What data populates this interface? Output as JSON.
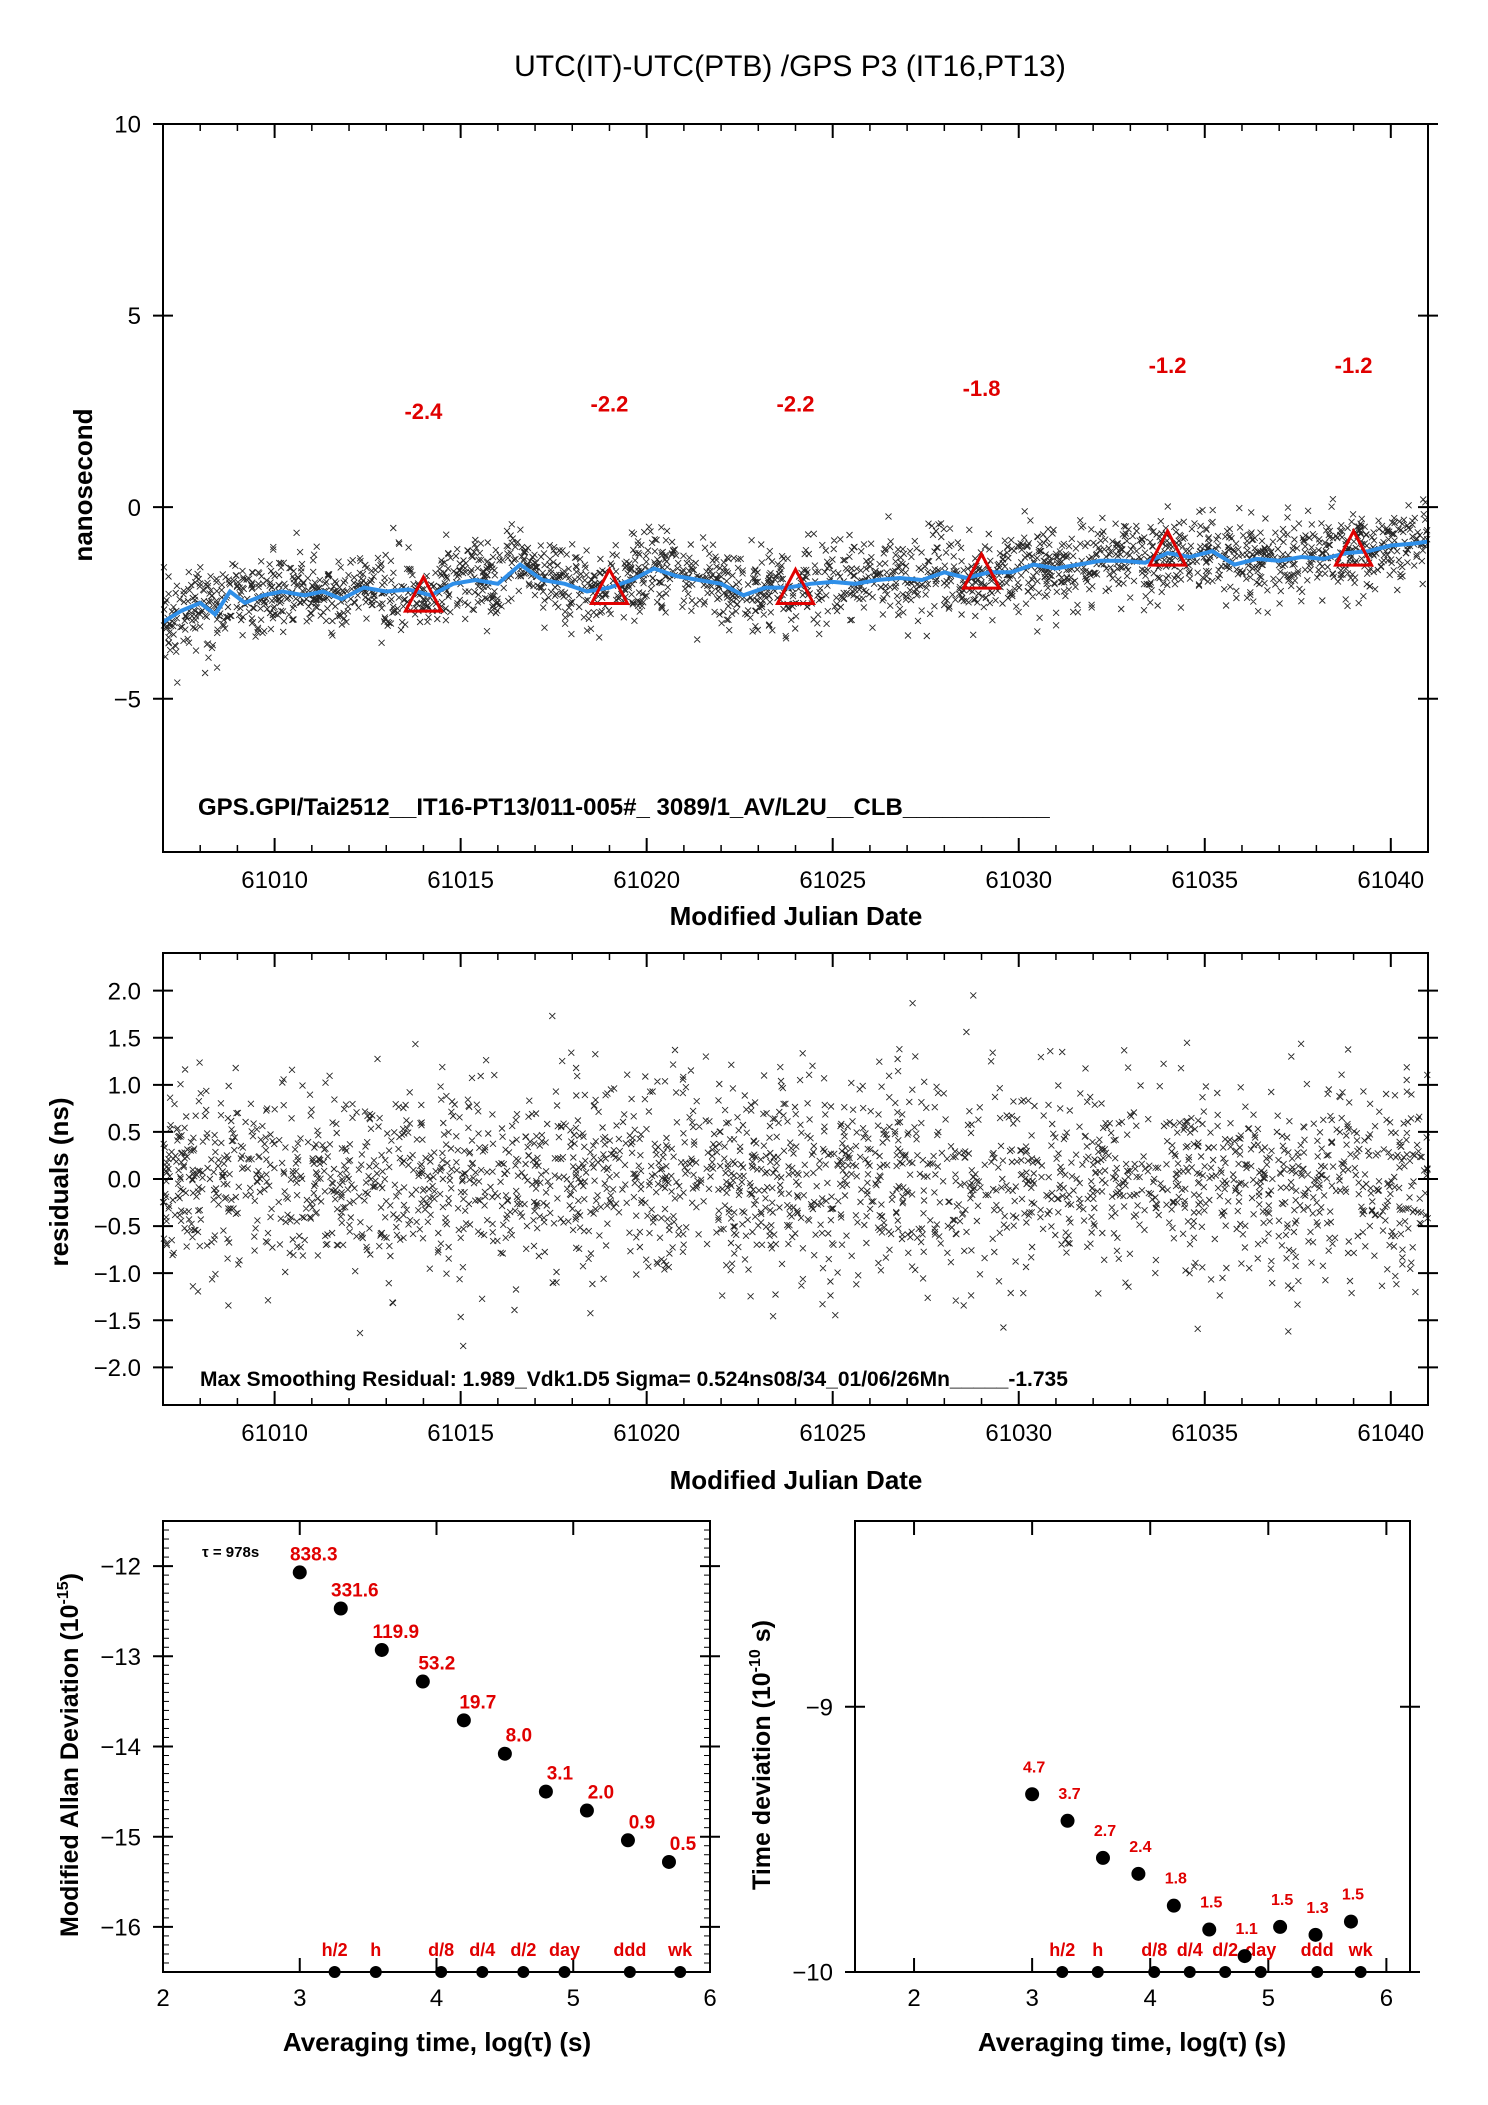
{
  "figure": {
    "title": "UTC(IT)-UTC(PTB)  /GPS  P3  (IT16,PT13)"
  },
  "chart_data": [
    {
      "type": "scatter",
      "panel": "time-difference",
      "xlabel": "Modified Julian Date",
      "ylabel": "nanosecond",
      "xlim": [
        61007,
        61041
      ],
      "ylim": [
        -9,
        10
      ],
      "xticks": [
        61010,
        61015,
        61020,
        61025,
        61030,
        61035,
        61040
      ],
      "xtick_labels": [
        "61010",
        "61015",
        "61020",
        "61025",
        "61030",
        "61035",
        "61040"
      ],
      "yticks": [
        -5,
        0,
        5,
        10
      ],
      "ytick_labels": [
        "−5",
        "0",
        "5",
        "10"
      ],
      "annotation": "GPS.GPI/Tai2512__IT16-PT13/011-005#_  3089/1_AV/L2U__CLB___________",
      "grid": false,
      "series": [
        {
          "kind": "smoothed-line",
          "color": "#2f8fe8",
          "x": [
            61007,
            61007.5,
            61008,
            61008.4,
            61008.8,
            61009.2,
            61009.7,
            61010.2,
            61010.8,
            61011.3,
            61011.8,
            61012.4,
            61013,
            61013.6,
            61014.2,
            61014.8,
            61015.4,
            61016,
            61016.6,
            61017.2,
            61017.8,
            61018.4,
            61019,
            61019.6,
            61020.2,
            61020.8,
            61021.4,
            61022,
            61022.6,
            61023.2,
            61023.8,
            61024.4,
            61025,
            61025.6,
            61026.2,
            61026.8,
            61027.4,
            61028,
            61028.6,
            61029.2,
            61029.8,
            61030.4,
            61031,
            61031.6,
            61032.2,
            61032.8,
            61033.4,
            61034,
            61034.6,
            61035.2,
            61035.8,
            61036.4,
            61037,
            61037.6,
            61038.2,
            61038.8,
            61039.4,
            61040,
            61040.6,
            61041
          ],
          "y": [
            -3.0,
            -2.7,
            -2.5,
            -2.8,
            -2.2,
            -2.5,
            -2.3,
            -2.2,
            -2.3,
            -2.2,
            -2.4,
            -2.1,
            -2.2,
            -2.15,
            -2.3,
            -2.0,
            -1.9,
            -2.0,
            -1.5,
            -1.9,
            -2.0,
            -2.2,
            -2.1,
            -1.9,
            -1.6,
            -1.8,
            -1.9,
            -2.0,
            -2.3,
            -2.1,
            -2.1,
            -2.0,
            -1.95,
            -2.0,
            -1.9,
            -1.85,
            -1.9,
            -1.7,
            -1.85,
            -1.7,
            -1.7,
            -1.5,
            -1.6,
            -1.5,
            -1.4,
            -1.4,
            -1.45,
            -1.2,
            -1.3,
            -1.15,
            -1.5,
            -1.35,
            -1.4,
            -1.3,
            -1.35,
            -1.2,
            -1.15,
            -1.0,
            -0.95,
            -0.9
          ]
        },
        {
          "kind": "daily-mean-markers",
          "marker": "triangle",
          "color": "#e00000",
          "x": [
            61014,
            61019,
            61024,
            61029,
            61034,
            61039
          ],
          "y": [
            -2.4,
            -2.2,
            -2.2,
            -1.8,
            -1.2,
            -1.2
          ],
          "labels": [
            "-2.4",
            "-2.2",
            "-2.2",
            "-1.8",
            "-1.2",
            "-1.2"
          ],
          "label_y": [
            2.3,
            2.5,
            2.5,
            2.9,
            3.5,
            3.5
          ]
        },
        {
          "kind": "raw-points",
          "marker": "x",
          "color": "#000000",
          "description": "dense cloud of individual measurements scattered about ±1 ns around the smoothed line",
          "n_points": 2400
        }
      ]
    },
    {
      "type": "scatter",
      "panel": "residuals",
      "xlabel": "Modified Julian Date",
      "ylabel": "residuals (ns)",
      "xlim": [
        61007,
        61041
      ],
      "ylim": [
        -2.4,
        2.4
      ],
      "xticks": [
        61010,
        61015,
        61020,
        61025,
        61030,
        61035,
        61040
      ],
      "xtick_labels": [
        "61010",
        "61015",
        "61020",
        "61025",
        "61030",
        "61035",
        "61040"
      ],
      "yticks": [
        -2.0,
        -1.5,
        -1.0,
        -0.5,
        0.0,
        0.5,
        1.0,
        1.5,
        2.0
      ],
      "ytick_labels": [
        "−2.0",
        "−1.5",
        "−1.0",
        "−0.5",
        "0.0",
        "0.5",
        "1.0",
        "1.5",
        "2.0"
      ],
      "annotation": "Max Smoothing Residual: 1.989_Vdk1.D5  Sigma= 0.524ns08/34_01/06/26Mn_____-1.735",
      "grid": false,
      "series": [
        {
          "kind": "raw-points",
          "marker": "x",
          "color": "#000000",
          "description": "residuals scattered about zero with sigma 0.524 ns",
          "sigma": 0.524,
          "n_points": 2400
        }
      ]
    },
    {
      "type": "scatter",
      "panel": "modified-allan-deviation",
      "xlabel": "Averaging time, log(τ) (s)",
      "ylabel": "Modified Allan Deviation (10⁻¹⁵)",
      "ylabel_main": "Modified Allan Deviation (10",
      "ylabel_exp": "-15",
      "ylabel_tail": ")",
      "xlim": [
        2,
        6
      ],
      "ylim": [
        -16.5,
        -11.5
      ],
      "log_scale": true,
      "xticks": [
        2,
        3,
        4,
        5,
        6
      ],
      "xtick_labels": [
        "2",
        "3",
        "4",
        "5",
        "6"
      ],
      "yticks": [
        -16,
        -15,
        -14,
        -13,
        -12
      ],
      "ytick_labels": [
        "−16",
        "−15",
        "−14",
        "−13",
        "−12"
      ],
      "tau_note": "τ = 978s",
      "grid": false,
      "points": {
        "x": [
          3.0,
          3.3,
          3.6,
          3.9,
          4.2,
          4.5,
          4.8,
          5.1,
          5.4,
          5.7
        ],
        "y": [
          -12.07,
          -12.47,
          -12.93,
          -13.28,
          -13.71,
          -14.08,
          -14.5,
          -14.71,
          -15.04,
          -15.28
        ],
        "labels": [
          "838.3",
          "331.6",
          "119.9",
          "53.2",
          "19.7",
          "8.0",
          "3.1",
          "2.0",
          "0.9",
          "0.5"
        ]
      },
      "reference_marks": {
        "x": [
          3.255,
          3.556,
          4.034,
          4.335,
          4.635,
          4.936,
          5.414,
          5.782
        ],
        "labels": [
          "h/2",
          "h",
          "d/8",
          "d/4",
          "d/2",
          "day",
          "ddd",
          "wk"
        ]
      }
    },
    {
      "type": "scatter",
      "panel": "time-deviation",
      "xlabel": "Averaging time, log(τ) (s)",
      "ylabel": "Time deviation (10⁻¹⁰ s)",
      "ylabel_main": "Time deviation (10",
      "ylabel_exp": "-10",
      "ylabel_tail": " s)",
      "xlim": [
        1.5,
        6.2
      ],
      "ylim": [
        -10,
        -8.3
      ],
      "log_scale": true,
      "xticks": [
        2,
        3,
        4,
        5,
        6
      ],
      "xtick_labels": [
        "2",
        "3",
        "4",
        "5",
        "6"
      ],
      "yticks": [
        -10,
        -9
      ],
      "ytick_labels": [
        "−10",
        "−9"
      ],
      "grid": false,
      "points": {
        "x": [
          3.0,
          3.3,
          3.6,
          3.9,
          4.2,
          4.5,
          4.8,
          5.1,
          5.4,
          5.7
        ],
        "y": [
          -9.33,
          -9.43,
          -9.57,
          -9.63,
          -9.75,
          -9.84,
          -9.94,
          -9.83,
          -9.86,
          -9.81
        ],
        "labels": [
          "4.7",
          "3.7",
          "2.7",
          "2.4",
          "1.8",
          "1.5",
          "1.1",
          "1.5",
          "1.3",
          "1.5"
        ]
      },
      "reference_marks": {
        "x": [
          3.255,
          3.556,
          4.034,
          4.335,
          4.635,
          4.936,
          5.414,
          5.782
        ],
        "labels": [
          "h/2",
          "h",
          "d/8",
          "d/4",
          "d/2",
          "day",
          "ddd",
          "wk"
        ]
      }
    }
  ]
}
